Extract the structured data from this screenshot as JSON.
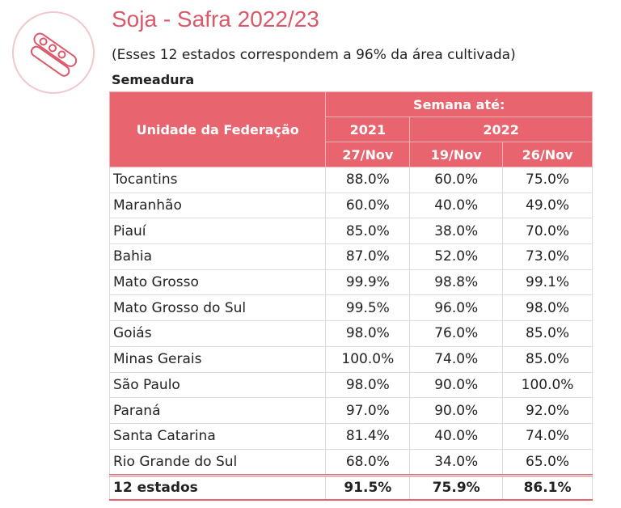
{
  "header": {
    "title": "Soja - Safra 2022/23",
    "subtitle": "(Esses 12 estados correspondem a 96% da área cultivada)",
    "section": "Semeadura"
  },
  "table": {
    "head": {
      "unit": "Unidade da Federação",
      "week": "Semana até:",
      "years": [
        "2021",
        "2022"
      ],
      "dates": [
        "27/Nov",
        "19/Nov",
        "26/Nov"
      ]
    },
    "rows": [
      [
        "Tocantins",
        "88.0%",
        "60.0%",
        "75.0%"
      ],
      [
        "Maranhão",
        "60.0%",
        "40.0%",
        "49.0%"
      ],
      [
        "Piauí",
        "85.0%",
        "38.0%",
        "70.0%"
      ],
      [
        "Bahia",
        "87.0%",
        "52.0%",
        "73.0%"
      ],
      [
        "Mato Grosso",
        "99.9%",
        "98.8%",
        "99.1%"
      ],
      [
        "Mato Grosso do Sul",
        "99.5%",
        "96.0%",
        "98.0%"
      ],
      [
        "Goiás",
        "98.0%",
        "76.0%",
        "85.0%"
      ],
      [
        "Minas Gerais",
        "100.0%",
        "74.0%",
        "85.0%"
      ],
      [
        "São Paulo",
        "98.0%",
        "90.0%",
        "100.0%"
      ],
      [
        "Paraná",
        "97.0%",
        "90.0%",
        "92.0%"
      ],
      [
        "Santa Catarina",
        "81.4%",
        "40.0%",
        "74.0%"
      ],
      [
        "Rio Grande do Sul",
        "68.0%",
        "34.0%",
        "65.0%"
      ]
    ],
    "total": [
      "12 estados",
      "91.5%",
      "75.9%",
      "86.1%"
    ]
  }
}
